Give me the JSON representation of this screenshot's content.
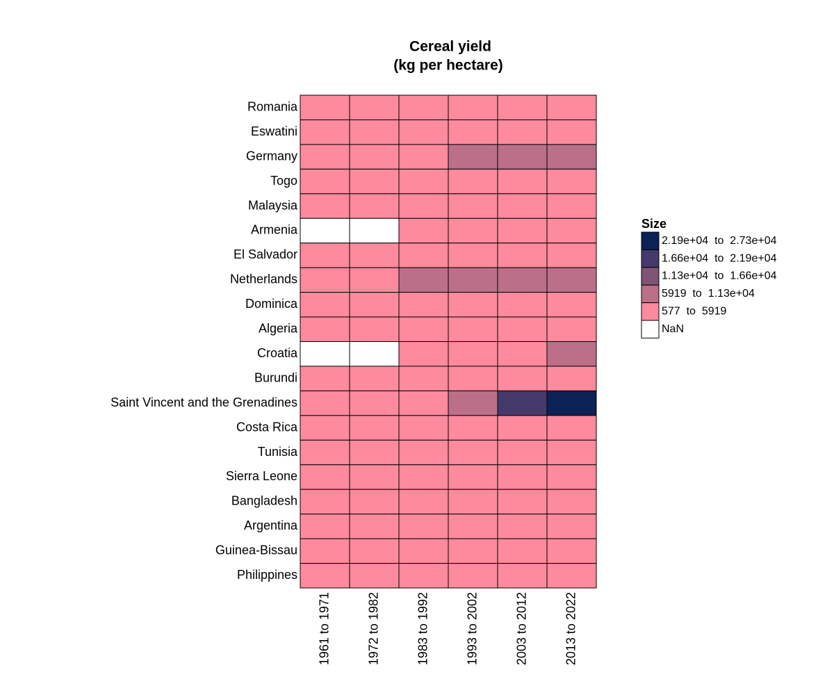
{
  "chart_data": {
    "type": "heatmap",
    "title": "Cereal yield",
    "subtitle": "(kg per hectare)",
    "rows": [
      "Romania",
      "Eswatini",
      "Germany",
      "Togo",
      "Malaysia",
      "Armenia",
      "El Salvador",
      "Netherlands",
      "Dominica",
      "Algeria",
      "Croatia",
      "Burundi",
      "Saint Vincent and the Grenadines",
      "Costa Rica",
      "Tunisia",
      "Sierra Leone",
      "Bangladesh",
      "Argentina",
      "Guinea-Bissau",
      "Philippines"
    ],
    "columns": [
      "1961 to 1971",
      "1972 to 1982",
      "1983 to 1992",
      "1993 to 2002",
      "2003 to 2012",
      "2013 to 2022"
    ],
    "values": [
      [
        1600,
        2300,
        2900,
        2700,
        3100,
        4300
      ],
      [
        1100,
        1400,
        1700,
        1200,
        1000,
        1600
      ],
      [
        3100,
        4100,
        5500,
        6600,
        7000,
        7300
      ],
      [
        800,
        900,
        900,
        1000,
        1100,
        1300
      ],
      [
        2000,
        2400,
        2700,
        3000,
        3700,
        3900
      ],
      [
        null,
        null,
        1700,
        1700,
        2000,
        2300
      ],
      [
        1000,
        1500,
        1700,
        2000,
        2500,
        2700
      ],
      [
        4100,
        5200,
        6900,
        8000,
        8400,
        8300
      ],
      [
        1200,
        1300,
        1300,
        1500,
        1700,
        1900
      ],
      [
        600,
        650,
        800,
        1000,
        1400,
        1700
      ],
      [
        null,
        null,
        4100,
        4600,
        5300,
        6000
      ],
      [
        1100,
        1200,
        1300,
        1300,
        1400,
        1500
      ],
      [
        2000,
        2600,
        3100,
        7500,
        17500,
        24500
      ],
      [
        1500,
        2200,
        2600,
        3500,
        3500,
        3600
      ],
      [
        600,
        800,
        900,
        1300,
        1500,
        1700
      ],
      [
        1200,
        1200,
        1200,
        1100,
        1400,
        1200
      ],
      [
        1700,
        1900,
        2200,
        2800,
        3800,
        4500
      ],
      [
        1500,
        2000,
        2300,
        3300,
        4100,
        4700
      ],
      [
        1100,
        900,
        1300,
        1400,
        1400,
        1400
      ],
      [
        1000,
        1200,
        1600,
        2200,
        3300,
        3600
      ]
    ],
    "legend_title": "Size",
    "legend": [
      {
        "label": "2.19e+04  to  2.73e+04",
        "from": 21900,
        "to": 27300,
        "color": "#0b2256"
      },
      {
        "label": "1.66e+04  to  2.19e+04",
        "from": 16600,
        "to": 21900,
        "color": "#433a6b"
      },
      {
        "label": "1.13e+04  to  1.66e+04",
        "from": 11300,
        "to": 16600,
        "color": "#7e5477"
      },
      {
        "label": "5919  to  1.13e+04",
        "from": 5919,
        "to": 11300,
        "color": "#bb6f88"
      },
      {
        "label": "577  to  5919",
        "from": 577,
        "to": 5919,
        "color": "#fd8a9d"
      },
      {
        "label": "NaN",
        "color": "#ffffff"
      }
    ]
  }
}
